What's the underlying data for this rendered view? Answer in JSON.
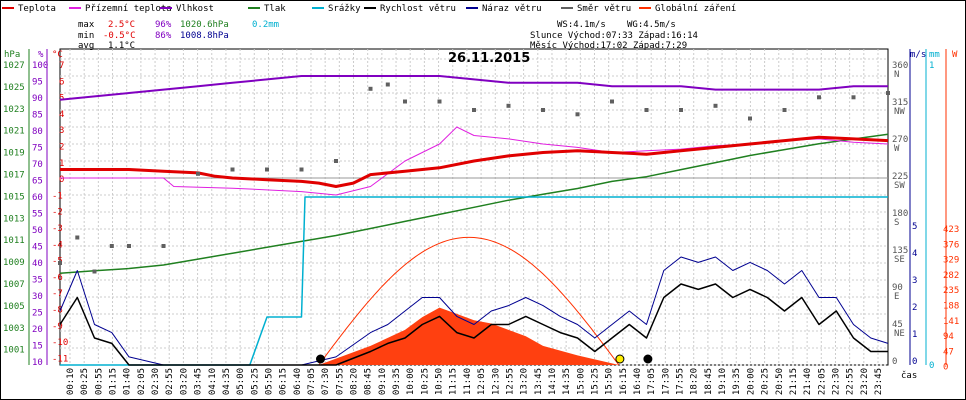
{
  "legend": [
    {
      "label": "Teplota",
      "color": "#e00000"
    },
    {
      "label": "Přízemní teplota",
      "color": "#e020e0"
    },
    {
      "label": "Vlhkost",
      "color": "#8000c0"
    },
    {
      "label": "Tlak",
      "color": "#208020"
    },
    {
      "label": "Srážky",
      "color": "#00b0d0"
    },
    {
      "label": "Rychlost větru",
      "color": "#000000"
    },
    {
      "label": "Náraz větru",
      "color": "#000090"
    },
    {
      "label": "Směr větru",
      "color": "#606060"
    },
    {
      "label": "Globální záření",
      "color": "#ff3000"
    }
  ],
  "stats": {
    "max_label": "max",
    "max_temp": "2.5°C",
    "max_hum": "96%",
    "max_press": "1020.6hPa",
    "max_rain": "0.2mm",
    "min_label": "min",
    "min_temp": "-0.5°C",
    "min_hum": "86%",
    "min_press": "1008.8hPa",
    "avg_label": "avg",
    "avg_temp": "1.1°C",
    "ws": "WS:4.1m/s",
    "wg": "WG:4.5m/s",
    "sun": "Slunce Východ:07:33  Západ:16:14",
    "moon": "Měsíc  Východ:17:02  Západ:7:29"
  },
  "chart_data": {
    "type": "line",
    "title": "26.11.2015",
    "xlabel": "čas",
    "x_ticks": [
      "00:10",
      "00:25",
      "00:55",
      "01:15",
      "01:40",
      "02:05",
      "02:30",
      "02:55",
      "03:20",
      "03:45",
      "04:10",
      "04:35",
      "05:00",
      "05:25",
      "05:50",
      "06:15",
      "06:40",
      "07:05",
      "07:30",
      "07:55",
      "08:20",
      "08:45",
      "09:10",
      "09:35",
      "10:00",
      "10:25",
      "10:50",
      "11:15",
      "11:40",
      "12:05",
      "12:30",
      "12:55",
      "13:20",
      "13:45",
      "14:10",
      "14:35",
      "15:00",
      "15:25",
      "15:50",
      "16:15",
      "16:40",
      "17:05",
      "17:30",
      "17:55",
      "18:20",
      "18:45",
      "19:10",
      "19:35",
      "20:00",
      "20:25",
      "20:50",
      "21:15",
      "21:40",
      "22:05",
      "22:30",
      "22:55",
      "23:20",
      "23:45"
    ],
    "axes": {
      "pressure": {
        "unit": "hPa",
        "ticks": [
          "1027",
          "1025",
          "1023",
          "1021",
          "1019",
          "1017",
          "1015",
          "1013",
          "1011",
          "1009",
          "1007",
          "1005",
          "1003",
          "1001"
        ]
      },
      "humidity": {
        "unit": "%",
        "ticks": [
          "100",
          "95",
          "90",
          "85",
          "80",
          "75",
          "70",
          "65",
          "60",
          "55",
          "50",
          "45",
          "40",
          "35",
          "30",
          "25",
          "20",
          "15",
          "10"
        ]
      },
      "temperature": {
        "unit": "°C",
        "ticks": [
          "7",
          "6",
          "5",
          "4",
          "3",
          "2",
          "1",
          "0",
          "-1",
          "-2",
          "-3",
          "-4",
          "-5",
          "-6",
          "-7",
          "-8",
          "-9",
          "-10",
          "-11"
        ],
        "ylim": [
          -11,
          7
        ]
      },
      "wind_dir": {
        "unit": "",
        "ticks": [
          {
            "v": "360",
            "d": "N"
          },
          {
            "v": "315",
            "d": "NW"
          },
          {
            "v": "270",
            "d": "W"
          },
          {
            "v": "225",
            "d": "SW"
          },
          {
            "v": "180",
            "d": "S"
          },
          {
            "v": "135",
            "d": "SE"
          },
          {
            "v": "90",
            "d": "E"
          },
          {
            "v": "45",
            "d": "NE"
          },
          {
            "v": "0",
            "d": ""
          }
        ]
      },
      "wind_speed": {
        "unit": "m/s",
        "ticks": [
          "5",
          "4",
          "3",
          "2",
          "1",
          "0"
        ]
      },
      "rain": {
        "unit": "mm",
        "ticks": [
          "1",
          "0"
        ]
      },
      "radiation": {
        "unit": "W",
        "ticks": [
          "423",
          "376",
          "329",
          "282",
          "235",
          "188",
          "141",
          "94",
          "47",
          "0"
        ]
      }
    },
    "series": [
      {
        "name": "Teplota",
        "color": "#e00000",
        "x": [
          0,
          1,
          2,
          3,
          4,
          4.5,
          5,
          6,
          7,
          7.5,
          8,
          8.5,
          9,
          10,
          11,
          12,
          13,
          14,
          15,
          16,
          17,
          18,
          19,
          20,
          21,
          22,
          23,
          24
        ],
        "y": [
          0.5,
          0.5,
          0.5,
          0.4,
          0.3,
          0.1,
          0,
          -0.1,
          -0.2,
          -0.3,
          -0.5,
          -0.3,
          0.2,
          0.4,
          0.6,
          1.0,
          1.3,
          1.5,
          1.6,
          1.5,
          1.4,
          1.6,
          1.8,
          2.0,
          2.2,
          2.4,
          2.3,
          2.2
        ]
      },
      {
        "name": "Přízemní teplota",
        "color": "#e020e0",
        "x": [
          0,
          3,
          3.3,
          5,
          7,
          8,
          9,
          10,
          11,
          11.5,
          12,
          13,
          14,
          15,
          16,
          17,
          18,
          19,
          20,
          21,
          22,
          23,
          24
        ],
        "y": [
          0,
          0,
          -0.5,
          -0.6,
          -0.8,
          -1.0,
          -0.5,
          1.0,
          2.0,
          3.0,
          2.5,
          2.3,
          2.0,
          1.8,
          1.5,
          1.6,
          1.7,
          1.9,
          2.0,
          2.2,
          2.3,
          2.1,
          2.0
        ]
      },
      {
        "name": "Vlhkost",
        "color": "#8000c0",
        "x": [
          0,
          1,
          2,
          3,
          4,
          5,
          6,
          7,
          8,
          9,
          10,
          11,
          12,
          13,
          14,
          15,
          16,
          17,
          18,
          19,
          20,
          21,
          22,
          23,
          24
        ],
        "y": [
          88,
          89,
          90,
          91,
          92,
          93,
          94,
          95,
          95,
          95,
          95,
          95,
          94,
          93,
          93,
          93,
          92,
          92,
          92,
          91,
          91,
          91,
          91,
          92,
          92
        ]
      },
      {
        "name": "Tlak",
        "color": "#208020",
        "x": [
          0,
          1,
          2,
          3,
          4,
          5,
          6,
          7,
          8,
          9,
          10,
          11,
          12,
          13,
          14,
          15,
          16,
          17,
          18,
          19,
          20,
          21,
          22,
          23,
          24
        ],
        "y": [
          1008.8,
          1009.0,
          1009.2,
          1009.5,
          1010.0,
          1010.5,
          1011.0,
          1011.5,
          1012.0,
          1012.6,
          1013.2,
          1013.8,
          1014.4,
          1015.0,
          1015.5,
          1016.0,
          1016.6,
          1017.0,
          1017.6,
          1018.2,
          1018.8,
          1019.3,
          1019.8,
          1020.2,
          1020.6
        ]
      },
      {
        "name": "Srážky",
        "color": "#00b0d0",
        "x": [
          0,
          5.5,
          6,
          7,
          7.1,
          24
        ],
        "y": [
          0,
          0,
          0.2,
          0.2,
          0.7,
          0.7
        ]
      },
      {
        "name": "Rychlost větru",
        "color": "#000000",
        "x": [
          0,
          0.5,
          1,
          1.5,
          2,
          3,
          4,
          5,
          6,
          7,
          8,
          9,
          9.5,
          10,
          10.5,
          11,
          11.5,
          12,
          12.5,
          13,
          13.5,
          14,
          14.5,
          15,
          15.5,
          16,
          16.5,
          17,
          17.5,
          18,
          18.5,
          19,
          19.5,
          20,
          20.5,
          21,
          21.5,
          22,
          22.5,
          23,
          23.5,
          24
        ],
        "y": [
          1.5,
          2.5,
          1.0,
          0.8,
          0,
          0,
          0,
          0,
          0,
          0,
          0,
          0.5,
          0.8,
          1.0,
          1.5,
          1.8,
          1.2,
          1.0,
          1.5,
          1.5,
          1.8,
          1.5,
          1.2,
          1.0,
          0.5,
          1.0,
          1.5,
          1.0,
          2.5,
          3.0,
          2.8,
          3.0,
          2.5,
          2.8,
          2.5,
          2.0,
          2.5,
          1.5,
          2.0,
          1.0,
          0.5,
          0.5
        ]
      },
      {
        "name": "Náraz větru",
        "color": "#000090",
        "x": [
          0,
          0.5,
          1,
          1.5,
          2,
          3,
          4,
          5,
          6,
          7,
          8,
          9,
          9.5,
          10,
          10.5,
          11,
          11.5,
          12,
          12.5,
          13,
          13.5,
          14,
          14.5,
          15,
          15.5,
          16,
          16.5,
          17,
          17.5,
          18,
          18.5,
          19,
          19.5,
          20,
          20.5,
          21,
          21.5,
          22,
          22.5,
          23,
          23.5,
          24
        ],
        "y": [
          2.0,
          3.5,
          1.5,
          1.2,
          0.3,
          0,
          0,
          0,
          0,
          0,
          0.3,
          1.2,
          1.5,
          2.0,
          2.5,
          2.5,
          1.8,
          1.5,
          2.0,
          2.2,
          2.5,
          2.2,
          1.8,
          1.5,
          1.0,
          1.5,
          2.0,
          1.5,
          3.5,
          4.0,
          3.8,
          4.0,
          3.5,
          3.8,
          3.5,
          3.0,
          3.5,
          2.5,
          2.5,
          1.5,
          1.0,
          0.8
        ]
      },
      {
        "name": "Směr větru",
        "color": "#606060",
        "x": [
          0,
          0.5,
          1,
          1.5,
          2,
          3,
          4,
          5,
          6,
          7,
          8,
          9,
          9.5,
          10,
          11,
          12,
          13,
          14,
          15,
          16,
          17,
          18,
          19,
          20,
          21,
          22,
          23,
          24
        ],
        "y": [
          120,
          150,
          110,
          140,
          140,
          140,
          225,
          230,
          230,
          230,
          240,
          325,
          330,
          310,
          310,
          300,
          305,
          300,
          295,
          310,
          300,
          300,
          305,
          290,
          300,
          315,
          315,
          320
        ]
      },
      {
        "name": "Globální záření",
        "color": "#ff3000",
        "x": [
          7.5,
          8,
          9,
          10,
          10.5,
          11,
          11.5,
          12,
          12.5,
          13,
          13.5,
          14,
          15,
          16,
          16.2
        ],
        "y": [
          0,
          20,
          60,
          110,
          150,
          180,
          160,
          140,
          130,
          110,
          90,
          60,
          30,
          5,
          0
        ]
      }
    ]
  }
}
